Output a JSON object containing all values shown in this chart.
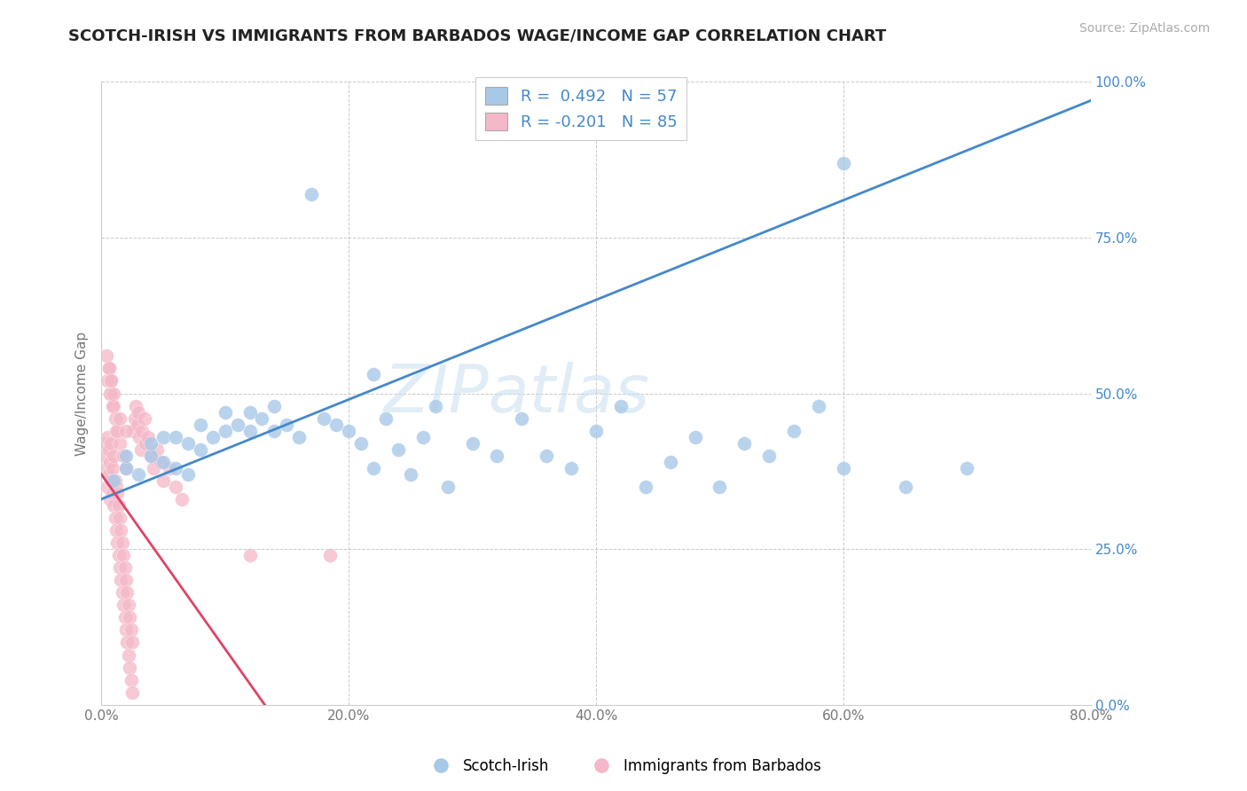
{
  "title": "SCOTCH-IRISH VS IMMIGRANTS FROM BARBADOS WAGE/INCOME GAP CORRELATION CHART",
  "source": "Source: ZipAtlas.com",
  "ylabel": "Wage/Income Gap",
  "x_min": 0.0,
  "x_max": 0.8,
  "y_min": 0.0,
  "y_max": 1.0,
  "x_ticks": [
    0.0,
    0.2,
    0.4,
    0.6,
    0.8
  ],
  "x_tick_labels": [
    "0.0%",
    "20.0%",
    "40.0%",
    "60.0%",
    "80.0%"
  ],
  "y_ticks": [
    0.0,
    0.25,
    0.5,
    0.75,
    1.0
  ],
  "y_tick_labels": [
    "0.0%",
    "25.0%",
    "50.0%",
    "75.0%",
    "100.0%"
  ],
  "legend_labels": [
    "Scotch-Irish",
    "Immigrants from Barbados"
  ],
  "r_blue": 0.492,
  "n_blue": 57,
  "r_pink": -0.201,
  "n_pink": 85,
  "blue_color": "#a8c8e8",
  "pink_color": "#f4b8c8",
  "blue_line_color": "#4488cc",
  "pink_line_color": "#dd4466",
  "watermark": "ZIPatlas",
  "blue_intercept": 0.33,
  "blue_slope": 0.8,
  "pink_intercept": 0.37,
  "pink_slope": -2.8,
  "blue_scatter_x": [
    0.01,
    0.02,
    0.02,
    0.03,
    0.04,
    0.04,
    0.05,
    0.05,
    0.06,
    0.06,
    0.07,
    0.07,
    0.08,
    0.08,
    0.09,
    0.1,
    0.1,
    0.11,
    0.12,
    0.12,
    0.13,
    0.14,
    0.14,
    0.15,
    0.16,
    0.17,
    0.18,
    0.19,
    0.2,
    0.21,
    0.22,
    0.23,
    0.24,
    0.25,
    0.26,
    0.27,
    0.28,
    0.3,
    0.32,
    0.34,
    0.36,
    0.38,
    0.4,
    0.42,
    0.44,
    0.46,
    0.48,
    0.5,
    0.52,
    0.54,
    0.56,
    0.58,
    0.6,
    0.65,
    0.7,
    0.22,
    0.6
  ],
  "blue_scatter_y": [
    0.36,
    0.38,
    0.4,
    0.37,
    0.4,
    0.42,
    0.39,
    0.43,
    0.38,
    0.43,
    0.37,
    0.42,
    0.41,
    0.45,
    0.43,
    0.44,
    0.47,
    0.45,
    0.44,
    0.47,
    0.46,
    0.44,
    0.48,
    0.45,
    0.43,
    0.82,
    0.46,
    0.45,
    0.44,
    0.42,
    0.38,
    0.46,
    0.41,
    0.37,
    0.43,
    0.48,
    0.35,
    0.42,
    0.4,
    0.46,
    0.4,
    0.38,
    0.44,
    0.48,
    0.35,
    0.39,
    0.43,
    0.35,
    0.42,
    0.4,
    0.44,
    0.48,
    0.38,
    0.35,
    0.38,
    0.53,
    0.87
  ],
  "pink_scatter_x": [
    0.002,
    0.003,
    0.004,
    0.005,
    0.005,
    0.006,
    0.006,
    0.007,
    0.007,
    0.008,
    0.008,
    0.009,
    0.009,
    0.01,
    0.01,
    0.011,
    0.011,
    0.012,
    0.012,
    0.013,
    0.013,
    0.014,
    0.014,
    0.015,
    0.015,
    0.016,
    0.016,
    0.017,
    0.017,
    0.018,
    0.018,
    0.019,
    0.019,
    0.02,
    0.02,
    0.021,
    0.021,
    0.022,
    0.022,
    0.023,
    0.023,
    0.024,
    0.024,
    0.025,
    0.025,
    0.026,
    0.027,
    0.028,
    0.029,
    0.03,
    0.031,
    0.032,
    0.033,
    0.035,
    0.036,
    0.038,
    0.04,
    0.042,
    0.045,
    0.048,
    0.05,
    0.055,
    0.06,
    0.065,
    0.008,
    0.01,
    0.012,
    0.015,
    0.018,
    0.02,
    0.005,
    0.007,
    0.009,
    0.011,
    0.013,
    0.006,
    0.008,
    0.01,
    0.015,
    0.02,
    0.004,
    0.006,
    0.008,
    0.12,
    0.185
  ],
  "pink_scatter_y": [
    0.4,
    0.42,
    0.38,
    0.35,
    0.43,
    0.37,
    0.41,
    0.33,
    0.39,
    0.36,
    0.42,
    0.34,
    0.38,
    0.32,
    0.4,
    0.3,
    0.36,
    0.28,
    0.35,
    0.26,
    0.34,
    0.24,
    0.32,
    0.22,
    0.3,
    0.2,
    0.28,
    0.18,
    0.26,
    0.16,
    0.24,
    0.14,
    0.22,
    0.12,
    0.2,
    0.1,
    0.18,
    0.08,
    0.16,
    0.06,
    0.14,
    0.04,
    0.12,
    0.02,
    0.1,
    0.44,
    0.46,
    0.48,
    0.45,
    0.47,
    0.43,
    0.41,
    0.44,
    0.46,
    0.42,
    0.43,
    0.4,
    0.38,
    0.41,
    0.39,
    0.36,
    0.38,
    0.35,
    0.33,
    0.5,
    0.48,
    0.44,
    0.42,
    0.4,
    0.38,
    0.52,
    0.5,
    0.48,
    0.46,
    0.44,
    0.54,
    0.52,
    0.5,
    0.46,
    0.44,
    0.56,
    0.54,
    0.52,
    0.24,
    0.24
  ]
}
